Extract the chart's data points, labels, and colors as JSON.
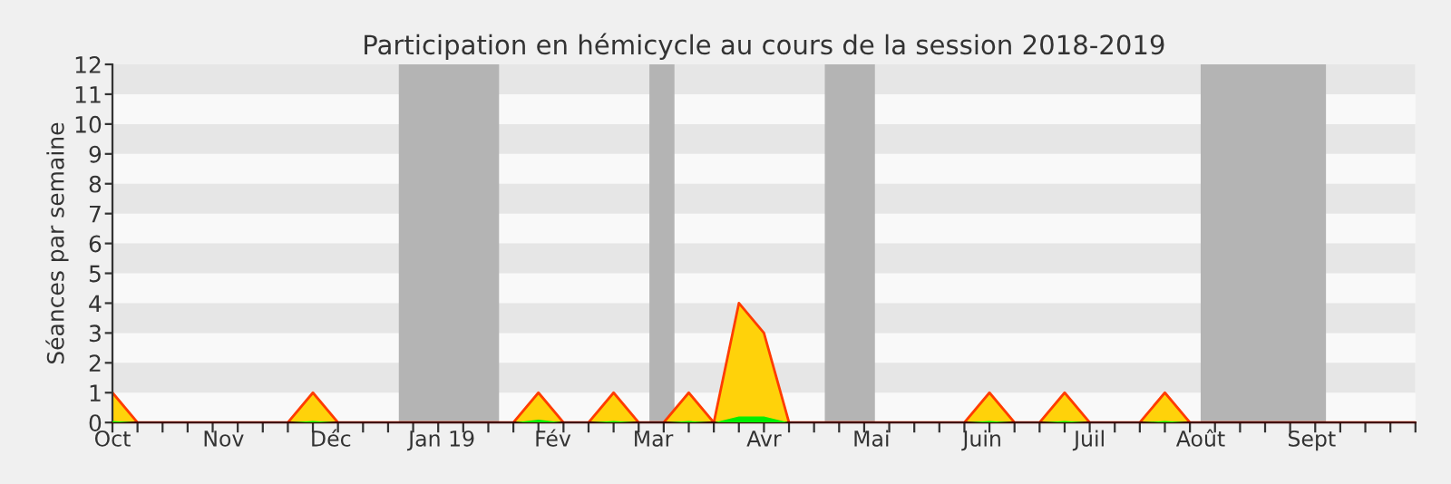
{
  "chart_data": {
    "type": "area",
    "title": "Participation en hémicycle au cours de la session 2018-2019",
    "ylabel": "Séances par semaine",
    "x": [
      "2018-10-01",
      "2018-10-08",
      "2018-10-15",
      "2018-10-22",
      "2018-10-29",
      "2018-11-05",
      "2018-11-12",
      "2018-11-19",
      "2018-11-26",
      "2018-12-03",
      "2018-12-10",
      "2018-12-17",
      "2018-12-24",
      "2018-12-31",
      "2019-01-07",
      "2019-01-14",
      "2019-01-21",
      "2019-01-28",
      "2019-02-04",
      "2019-02-11",
      "2019-02-18",
      "2019-02-25",
      "2019-03-04",
      "2019-03-11",
      "2019-03-18",
      "2019-03-25",
      "2019-04-01",
      "2019-04-08",
      "2019-04-15",
      "2019-04-22",
      "2019-04-29",
      "2019-05-06",
      "2019-05-13",
      "2019-05-20",
      "2019-05-27",
      "2019-06-03",
      "2019-06-10",
      "2019-06-17",
      "2019-06-24",
      "2019-07-01",
      "2019-07-08",
      "2019-07-15",
      "2019-07-22",
      "2019-07-29",
      "2019-08-05",
      "2019-08-12",
      "2019-08-19",
      "2019-08-26",
      "2019-09-02",
      "2019-09-09",
      "2019-09-16",
      "2019-09-23",
      "2019-09-30"
    ],
    "series": [
      {
        "color": "#ffd20a",
        "values": [
          1,
          0,
          0,
          0,
          0,
          0,
          0,
          0,
          1,
          0,
          0,
          0,
          0,
          0,
          0,
          0,
          0,
          1,
          0,
          0,
          1,
          0,
          0,
          1,
          0,
          4,
          3,
          0,
          0,
          0,
          0,
          0,
          0,
          0,
          0,
          1,
          0,
          0,
          1,
          0,
          0,
          0,
          1,
          0,
          0,
          0,
          0,
          0,
          0,
          0,
          0,
          0,
          0
        ]
      },
      {
        "color": "#00ee00",
        "values": [
          0.05,
          0,
          0,
          0,
          0,
          0,
          0,
          0,
          0.05,
          0,
          0,
          0,
          0,
          0,
          0,
          0,
          0,
          0.1,
          0,
          0,
          0.05,
          0,
          0,
          0.05,
          0,
          0.2,
          0.2,
          0,
          0,
          0,
          0,
          0,
          0,
          0,
          0,
          0.05,
          0,
          0,
          0.05,
          0,
          0,
          0,
          0.05,
          0,
          0,
          0,
          0,
          0,
          0,
          0,
          0,
          0,
          0
        ]
      }
    ],
    "bands": [
      {
        "axis": "x",
        "from": "2018-12-20",
        "to": "2019-01-17",
        "color": "#b4b4b4"
      },
      {
        "axis": "x",
        "from": "2019-02-28",
        "to": "2019-03-07",
        "color": "#b4b4b4"
      },
      {
        "axis": "x",
        "from": "2019-04-18",
        "to": "2019-05-02",
        "color": "#b4b4b4"
      },
      {
        "axis": "x",
        "from": "2019-08-01",
        "to": "2019-09-05",
        "color": "#b4b4b4"
      }
    ],
    "xlim": [
      "2018-10-01",
      "2019-09-30"
    ],
    "xticks": [
      {
        "value": "2018-10-01",
        "label": "Oct"
      },
      {
        "value": "2018-11-01",
        "label": "Nov"
      },
      {
        "value": "2018-12-01",
        "label": "Déc"
      },
      {
        "value": "2019-01-01",
        "label": "Jan 19"
      },
      {
        "value": "2019-02-01",
        "label": "Fév"
      },
      {
        "value": "2019-03-01",
        "label": "Mar"
      },
      {
        "value": "2019-04-01",
        "label": "Avr"
      },
      {
        "value": "2019-05-01",
        "label": "Mai"
      },
      {
        "value": "2019-06-01",
        "label": "Juin"
      },
      {
        "value": "2019-07-01",
        "label": "Juil"
      },
      {
        "value": "2019-08-01",
        "label": "Août"
      },
      {
        "value": "2019-09-01",
        "label": "Sept"
      }
    ],
    "ylim": [
      0,
      12
    ],
    "yticks": [
      0,
      1,
      2,
      3,
      4,
      5,
      6,
      7,
      8,
      9,
      10,
      11,
      12
    ],
    "legend": false
  }
}
